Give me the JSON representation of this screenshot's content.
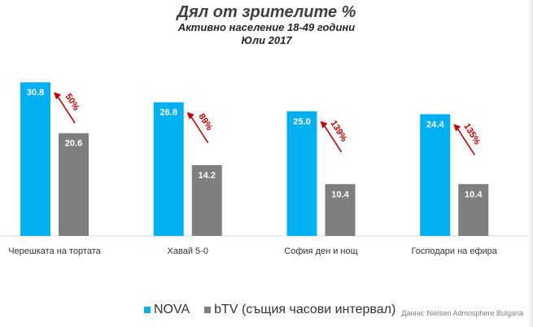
{
  "chart_data": {
    "type": "bar",
    "title": "Дял от зрителите %",
    "subtitle": "Активно население 18-49 години",
    "period": "Юли 2017",
    "categories": [
      "Черешката на тортата",
      "Хавай 5-0",
      "София ден и нощ",
      "Господари на ефира"
    ],
    "series": [
      {
        "name": "NOVA",
        "values": [
          30.8,
          26.8,
          25.0,
          24.4
        ],
        "labels": [
          "30.8",
          "26.8",
          "25.0",
          "24.4"
        ],
        "color": "#00b0f0"
      },
      {
        "name": "bTV (същия часови интервал)",
        "values": [
          20.6,
          14.2,
          10.4,
          10.4
        ],
        "labels": [
          "20.6",
          "14.2",
          "10.4",
          "10.4"
        ],
        "color": "#7f7f7f"
      }
    ],
    "annotations": [
      "50%",
      "89%",
      "139%",
      "135%"
    ],
    "ylim": [
      0,
      31
    ],
    "source": "Данни: Nielsen Admosphere Bulgaria",
    "colors": {
      "nova": "#00b0f0",
      "btv": "#7f7f7f",
      "annotation": "#c00000",
      "axis": "#d9d9d9"
    }
  }
}
